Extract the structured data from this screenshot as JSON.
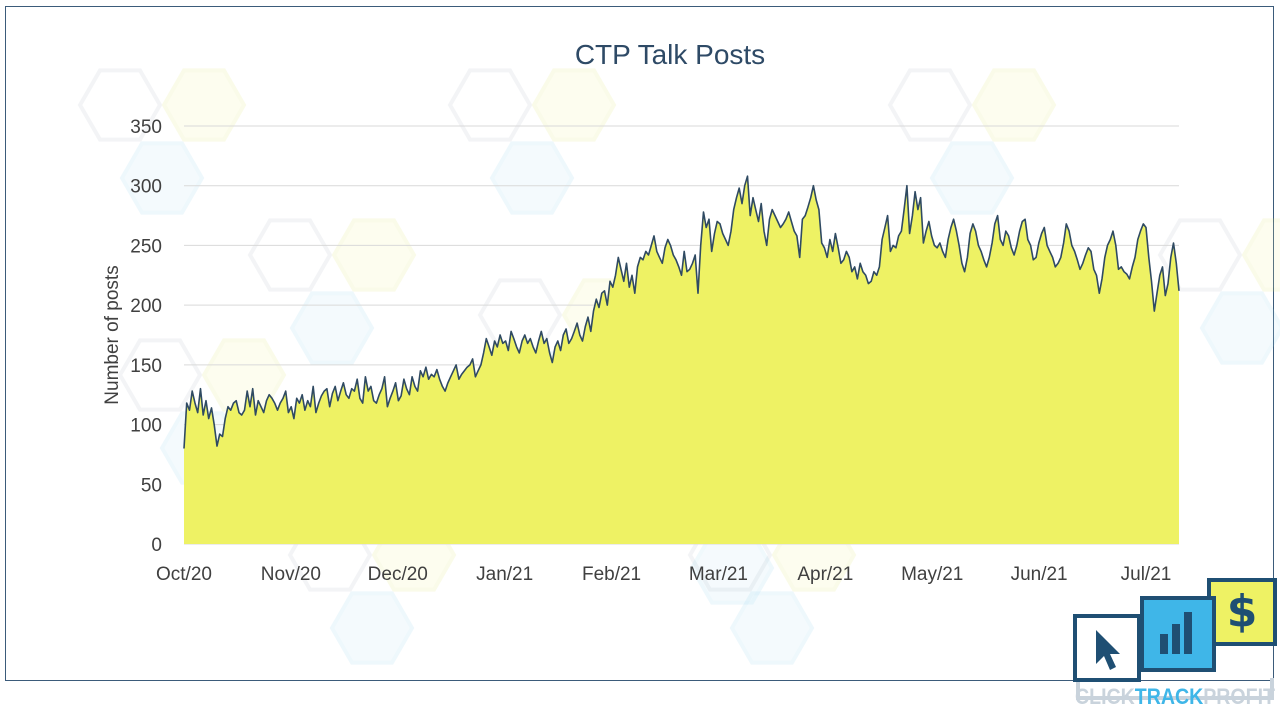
{
  "brand": {
    "name_parts": [
      "CLICK",
      "TRACK",
      "PROFIT"
    ],
    "colors": {
      "navy": "#1f4f73",
      "blue": "#3fb6e8",
      "yellow": "#eef264",
      "gray": "#d0d6dc"
    },
    "icons": [
      "cursor-icon",
      "bar-chart-icon",
      "dollar-icon"
    ]
  },
  "chart_data": {
    "type": "area",
    "title": "CTP Talk Posts",
    "xlabel": "",
    "ylabel": "Number of posts",
    "ylim": [
      0,
      350
    ],
    "yticks": [
      0,
      50,
      100,
      150,
      200,
      250,
      300,
      350
    ],
    "xticks": [
      "Oct/20",
      "Nov/20",
      "Dec/20",
      "Jan/21",
      "Feb/21",
      "Mar/21",
      "Apr/21",
      "May/21",
      "Jun/21",
      "Jul/21"
    ],
    "grid": true,
    "fill_color": "#eef264",
    "line_color": "#2f4a62",
    "series": [
      {
        "values": [
          80,
          118,
          112,
          128,
          118,
          110,
          130,
          108,
          120,
          105,
          114,
          100,
          82,
          92,
          90,
          105,
          115,
          112,
          118,
          120,
          110,
          108,
          112,
          128,
          115,
          130,
          108,
          120,
          115,
          110,
          120,
          125,
          122,
          118,
          112,
          118,
          122,
          128,
          110,
          115,
          105,
          122,
          118,
          125,
          112,
          120,
          115,
          132,
          110,
          118,
          124,
          128,
          130,
          115,
          126,
          132,
          120,
          128,
          135,
          125,
          122,
          130,
          128,
          138,
          122,
          118,
          140,
          128,
          132,
          120,
          118,
          125,
          130,
          140,
          115,
          122,
          128,
          135,
          120,
          124,
          138,
          130,
          125,
          140,
          132,
          128,
          145,
          140,
          148,
          138,
          142,
          140,
          146,
          138,
          132,
          128,
          135,
          140,
          145,
          150,
          138,
          142,
          145,
          148,
          150,
          155,
          140,
          145,
          150,
          160,
          172,
          165,
          158,
          170,
          165,
          175,
          168,
          170,
          162,
          178,
          172,
          165,
          160,
          170,
          175,
          168,
          172,
          165,
          160,
          170,
          178,
          168,
          172,
          160,
          152,
          165,
          170,
          162,
          175,
          180,
          168,
          172,
          178,
          185,
          175,
          170,
          182,
          190,
          178,
          195,
          205,
          198,
          210,
          212,
          200,
          220,
          215,
          225,
          240,
          230,
          220,
          235,
          215,
          225,
          210,
          232,
          240,
          238,
          245,
          242,
          250,
          258,
          245,
          240,
          235,
          248,
          255,
          250,
          242,
          238,
          232,
          225,
          245,
          228,
          230,
          235,
          242,
          210,
          250,
          278,
          265,
          272,
          245,
          260,
          270,
          268,
          260,
          255,
          250,
          262,
          280,
          290,
          298,
          285,
          300,
          308,
          275,
          290,
          280,
          270,
          285,
          262,
          250,
          272,
          280,
          275,
          270,
          265,
          268,
          272,
          278,
          270,
          262,
          258,
          240,
          272,
          275,
          282,
          290,
          300,
          288,
          280,
          252,
          248,
          240,
          255,
          245,
          260,
          248,
          235,
          238,
          245,
          240,
          228,
          232,
          222,
          235,
          228,
          225,
          218,
          220,
          228,
          225,
          232,
          255,
          265,
          275,
          245,
          250,
          248,
          258,
          262,
          280,
          300,
          260,
          275,
          295,
          280,
          290,
          252,
          262,
          270,
          258,
          250,
          248,
          252,
          245,
          240,
          255,
          265,
          272,
          262,
          250,
          235,
          228,
          240,
          260,
          268,
          262,
          250,
          245,
          238,
          232,
          240,
          252,
          268,
          275,
          255,
          250,
          262,
          258,
          248,
          242,
          250,
          262,
          270,
          272,
          255,
          250,
          238,
          240,
          252,
          260,
          265,
          250,
          245,
          240,
          232,
          235,
          240,
          252,
          268,
          262,
          250,
          245,
          238,
          230,
          235,
          242,
          248,
          245,
          230,
          225,
          210,
          222,
          240,
          250,
          255,
          262,
          250,
          230,
          232,
          228,
          226,
          222,
          232,
          240,
          255,
          262,
          268,
          265,
          240,
          220,
          195,
          210,
          225,
          232,
          208,
          218,
          240,
          252,
          235,
          212
        ]
      }
    ]
  }
}
